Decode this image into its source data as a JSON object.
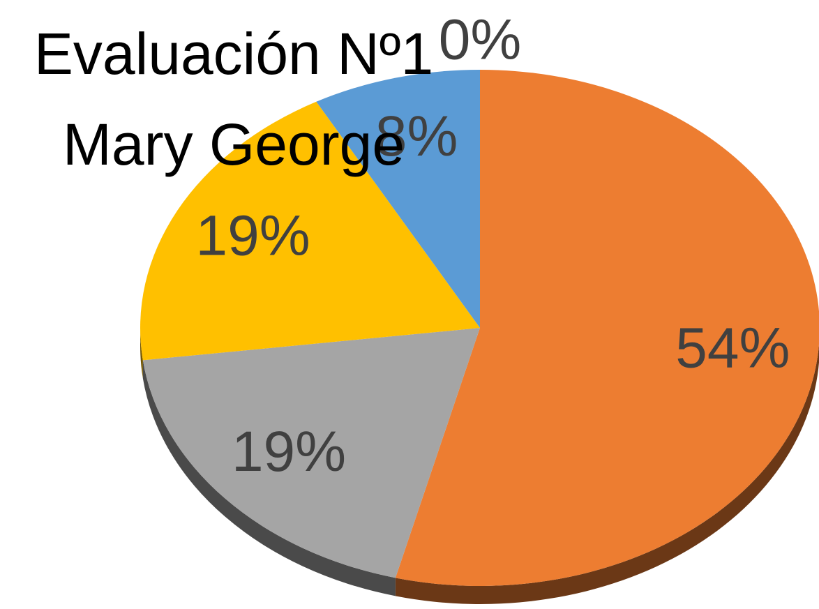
{
  "chart_data": {
    "type": "pie",
    "title": "Evaluación Nº1\nMary George",
    "categories": [
      null,
      null,
      null,
      null,
      null
    ],
    "values": [
      0,
      54,
      19,
      19,
      8
    ],
    "value_labels": [
      "0%",
      "54%",
      "19%",
      "19%",
      "8%"
    ],
    "colors": [
      "#5b9bd5",
      "#ed7d31",
      "#a5a5a5",
      "#ffc000",
      "#5b9bd5"
    ]
  }
}
